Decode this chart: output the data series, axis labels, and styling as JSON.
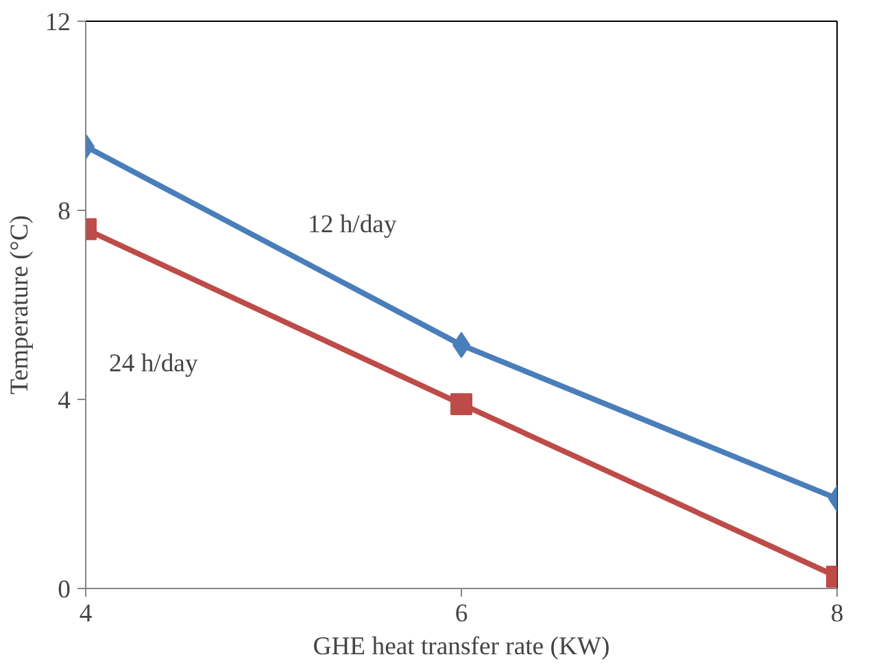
{
  "chart_data": {
    "type": "line",
    "xlabel": "GHE heat transfer rate (KW)",
    "ylabel": "Temperature (°C)",
    "x": [
      4,
      6,
      8
    ],
    "series": [
      {
        "name": "12 h/day",
        "color": "#4a7ebb",
        "marker": "diamond",
        "values": [
          9.35,
          5.15,
          1.9
        ]
      },
      {
        "name": "24 h/day",
        "color": "#be4b48",
        "marker": "square",
        "values": [
          7.6,
          3.9,
          0.25
        ]
      }
    ],
    "xlim": [
      4,
      8
    ],
    "xticks": [
      4,
      6,
      8
    ],
    "ylim": [
      0,
      12
    ],
    "yticks": [
      0,
      4,
      8,
      12
    ],
    "grid": false
  }
}
